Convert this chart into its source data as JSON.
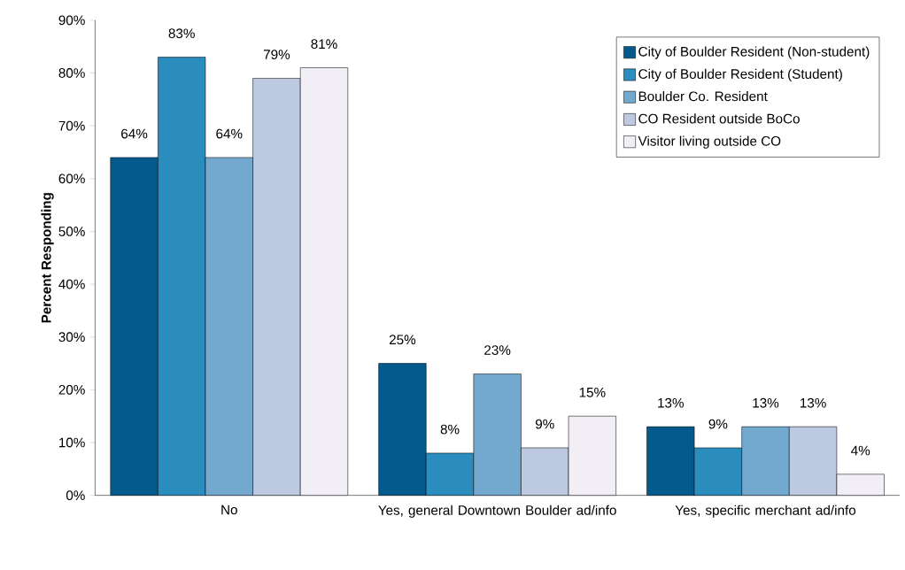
{
  "chart_data": {
    "type": "bar",
    "ylabel": "Percent Responding",
    "categories": [
      "No",
      "Yes, general Downtown Boulder ad/info",
      "Yes, specific merchant ad/info"
    ],
    "series": [
      {
        "name": "City of Boulder Resident (Non-student)",
        "color": "#045a8d",
        "values": [
          64,
          25,
          13
        ],
        "value_labels": [
          "64%",
          "25%",
          "13%"
        ]
      },
      {
        "name": "City of Boulder Resident (Student)",
        "color": "#2b8cbe",
        "values": [
          83,
          8,
          9
        ],
        "value_labels": [
          "83%",
          "8%",
          "9%"
        ]
      },
      {
        "name": "Boulder Co. Resident",
        "color": "#74a9cf",
        "values": [
          64,
          23,
          13
        ],
        "value_labels": [
          "64%",
          "23%",
          "13%"
        ]
      },
      {
        "name": "CO Resident outside BoCo",
        "color": "#bdc9e1",
        "values": [
          79,
          9,
          13
        ],
        "value_labels": [
          "79%",
          "9%",
          "13%"
        ]
      },
      {
        "name": "Visitor living outside CO",
        "color": "#f1eef6",
        "values": [
          81,
          15,
          4
        ],
        "value_labels": [
          "81%",
          "15%",
          "4%"
        ]
      }
    ],
    "ylim": [
      0,
      90
    ],
    "yticks": [
      {
        "value": 0,
        "label": "0%"
      },
      {
        "value": 10,
        "label": "10%"
      },
      {
        "value": 20,
        "label": "20%"
      },
      {
        "value": 30,
        "label": "30%"
      },
      {
        "value": 40,
        "label": "40%"
      },
      {
        "value": 50,
        "label": "50%"
      },
      {
        "value": 60,
        "label": "60%"
      },
      {
        "value": 70,
        "label": "70%"
      },
      {
        "value": 80,
        "label": "80%"
      },
      {
        "value": 90,
        "label": "90%"
      }
    ],
    "legend": "top right",
    "grid": false
  }
}
